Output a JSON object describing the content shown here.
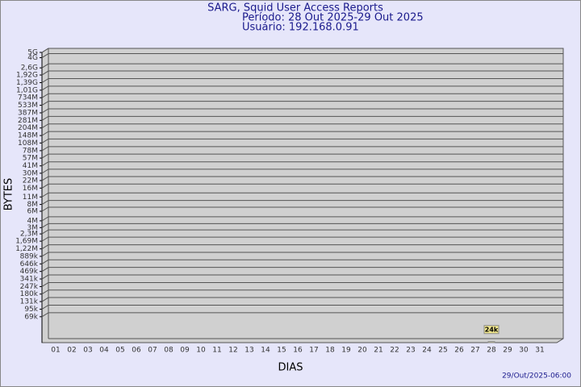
{
  "chart_data": {
    "type": "bar",
    "title": "SARG, Squid User Access Reports",
    "subtitle": "Período: 28 Out 2025-29 Out 2025",
    "user": "Usuário: 192.168.0.91",
    "ylabel": "BYTES",
    "xlabel": "DIAS",
    "footer": "29/Out/2025-06:00",
    "log_scale": true,
    "grid": true,
    "color": "#f0e68c",
    "categories": [
      "01",
      "02",
      "03",
      "04",
      "05",
      "06",
      "07",
      "08",
      "09",
      "10",
      "11",
      "12",
      "13",
      "14",
      "15",
      "16",
      "17",
      "18",
      "19",
      "20",
      "21",
      "22",
      "23",
      "24",
      "25",
      "26",
      "27",
      "28",
      "29",
      "30",
      "31"
    ],
    "values": [
      null,
      null,
      null,
      null,
      null,
      null,
      null,
      null,
      null,
      null,
      null,
      null,
      null,
      null,
      null,
      null,
      null,
      null,
      null,
      null,
      null,
      null,
      null,
      null,
      null,
      null,
      null,
      24000,
      null,
      null,
      null
    ],
    "value_labels": [
      null,
      null,
      null,
      null,
      null,
      null,
      null,
      null,
      null,
      null,
      null,
      null,
      null,
      null,
      null,
      null,
      null,
      null,
      null,
      null,
      null,
      null,
      null,
      null,
      null,
      null,
      null,
      "24k",
      null,
      null,
      null
    ],
    "ylim": [
      23000,
      5000000000
    ],
    "yticks": [
      {
        "value": 5000000000,
        "label": "5G"
      },
      {
        "value": 4000000000,
        "label": "4G"
      },
      {
        "value": 2600000000,
        "label": "2,6G"
      },
      {
        "value": 1920000000,
        "label": "1,92G"
      },
      {
        "value": 1390000000,
        "label": "1,39G"
      },
      {
        "value": 1010000000,
        "label": "1,01G"
      },
      {
        "value": 734000000,
        "label": "734M"
      },
      {
        "value": 533000000,
        "label": "533M"
      },
      {
        "value": 387000000,
        "label": "387M"
      },
      {
        "value": 281000000,
        "label": "281M"
      },
      {
        "value": 204000000,
        "label": "204M"
      },
      {
        "value": 148000000,
        "label": "148M"
      },
      {
        "value": 108000000,
        "label": "108M"
      },
      {
        "value": 78000000,
        "label": "78M"
      },
      {
        "value": 57000000,
        "label": "57M"
      },
      {
        "value": 41000000,
        "label": "41M"
      },
      {
        "value": 30000000,
        "label": "30M"
      },
      {
        "value": 22000000,
        "label": "22M"
      },
      {
        "value": 16000000,
        "label": "16M"
      },
      {
        "value": 11000000,
        "label": "11M"
      },
      {
        "value": 8000000,
        "label": "8M"
      },
      {
        "value": 6000000,
        "label": "6M"
      },
      {
        "value": 4000000,
        "label": "4M"
      },
      {
        "value": 3000000,
        "label": "3M"
      },
      {
        "value": 2300000,
        "label": "2,3M"
      },
      {
        "value": 1690000,
        "label": "1,69M"
      },
      {
        "value": 1220000,
        "label": "1,22M"
      },
      {
        "value": 889000,
        "label": "889k"
      },
      {
        "value": 646000,
        "label": "646k"
      },
      {
        "value": 469000,
        "label": "469k"
      },
      {
        "value": 341000,
        "label": "341k"
      },
      {
        "value": 247000,
        "label": "247k"
      },
      {
        "value": 180000,
        "label": "180k"
      },
      {
        "value": 131000,
        "label": "131k"
      },
      {
        "value": 95000,
        "label": "95k"
      },
      {
        "value": 69000,
        "label": "69k"
      }
    ]
  }
}
